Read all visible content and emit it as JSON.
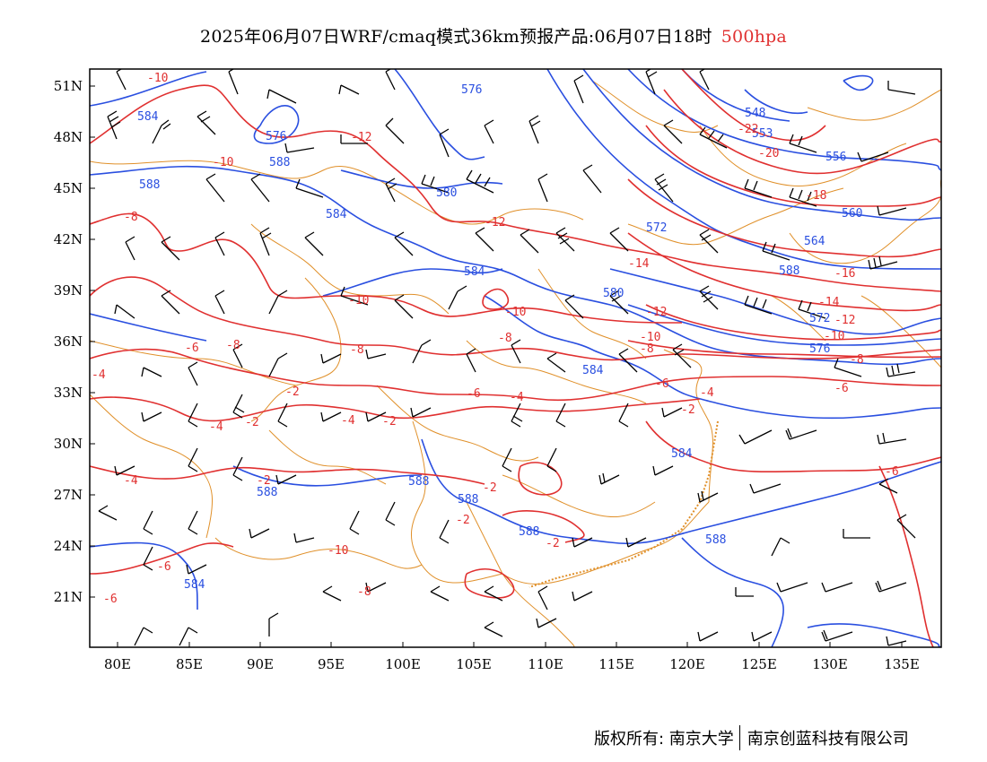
{
  "title": {
    "main": "2025年06月07日WRF/cmaq模式36km预报产品:06月07日18时",
    "level": "500hpa",
    "level_color": "#e03030"
  },
  "axes": {
    "x_ticks": [
      "80E",
      "85E",
      "90E",
      "95E",
      "100E",
      "105E",
      "110E",
      "115E",
      "120E",
      "125E",
      "130E",
      "135E"
    ],
    "y_ticks": [
      "51N",
      "48N",
      "45N",
      "42N",
      "39N",
      "36N",
      "33N",
      "30N",
      "27N",
      "24N",
      "21N"
    ]
  },
  "colors": {
    "geopotential": "#2a4fe0",
    "temperature": "#e03030",
    "borders": "#e0902a",
    "wind": "#000000"
  },
  "geopotential_labels": [
    "576",
    "584",
    "576",
    "588",
    "588",
    "580",
    "584",
    "584",
    "580",
    "572",
    "548",
    "553",
    "556",
    "560",
    "564",
    "588",
    "572",
    "576",
    "584",
    "584",
    "588",
    "588",
    "588",
    "588",
    "588",
    "584"
  ],
  "temperature_labels": [
    "-10",
    "-12",
    "-10",
    "-8",
    "-12",
    "-14",
    "-10",
    "-10",
    "-12",
    "-8",
    "-10",
    "-8",
    "-6",
    "-8",
    "-8",
    "-6",
    "-6",
    "-4",
    "-4",
    "-2",
    "-2",
    "-4",
    "-2",
    "-2",
    "-4",
    "-2",
    "-2",
    "-2",
    "-2",
    "-4",
    "-6",
    "-6",
    "-22",
    "-20",
    "-18",
    "-16",
    "-14",
    "-12",
    "-10",
    "-8",
    "-6",
    "-6",
    "-10",
    "-8",
    "-4"
  ],
  "footer": {
    "copyright": "版权所有: 南京大学",
    "company": "南京创蓝科技有限公司"
  }
}
